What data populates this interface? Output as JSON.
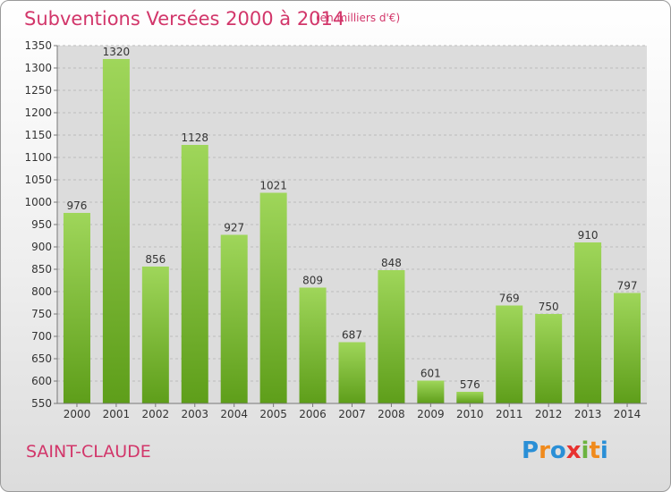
{
  "header": {
    "title": "Subventions Versées 2000 à 2014",
    "subtitle": "(en milliers d'€)"
  },
  "footer": {
    "city": "SAINT-CLAUDE",
    "logo_text": "Proxiti",
    "logo_colors": [
      "#2a8fd6",
      "#f08a1c",
      "#2a8fd6",
      "#e8312f",
      "#6cb33f",
      "#f08a1c",
      "#2a8fd6"
    ]
  },
  "colors": {
    "title": "#d2366a",
    "bar_top": "#9fd65a",
    "bar_bottom": "#5e9e1a",
    "grid": "#bbbbbb",
    "plot_bg": "#dcdcdc"
  },
  "chart_data": {
    "type": "bar",
    "title": "Subventions Versées 2000 à 2014",
    "subtitle": "(en milliers d'€)",
    "xlabel": "",
    "ylabel": "",
    "categories": [
      "2000",
      "2001",
      "2002",
      "2003",
      "2004",
      "2005",
      "2006",
      "2007",
      "2008",
      "2009",
      "2010",
      "2011",
      "2012",
      "2013",
      "2014"
    ],
    "values": [
      976,
      1320,
      856,
      1128,
      927,
      1021,
      809,
      687,
      848,
      601,
      576,
      769,
      750,
      910,
      797
    ],
    "ylim": [
      550,
      1350
    ],
    "yticks": [
      550,
      600,
      650,
      700,
      750,
      800,
      850,
      900,
      950,
      1000,
      1050,
      1100,
      1150,
      1200,
      1250,
      1300,
      1350
    ],
    "grid": true,
    "data_labels": true
  }
}
